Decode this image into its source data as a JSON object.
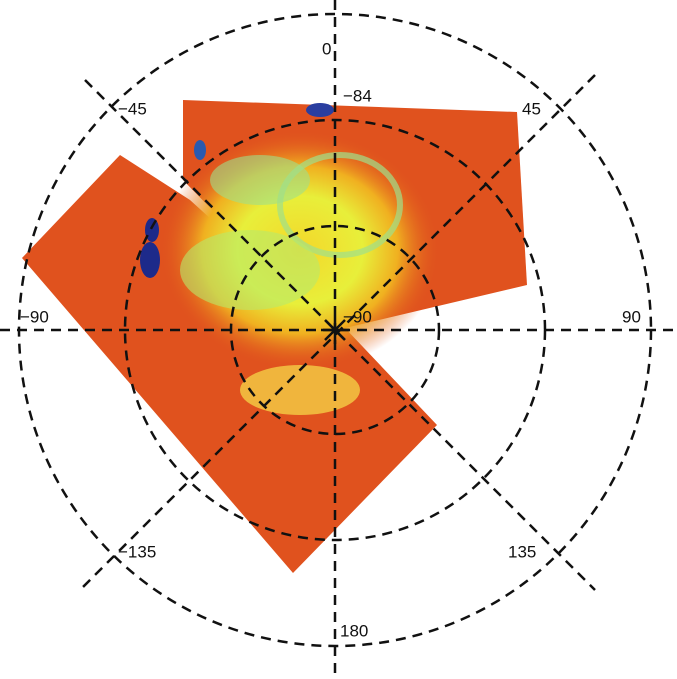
{
  "longitude_labels": [
    "0",
    "45",
    "90",
    "135",
    "180",
    "−135",
    "−90",
    "−45"
  ],
  "latitude_labels": [
    "−84",
    "−90"
  ]
}
